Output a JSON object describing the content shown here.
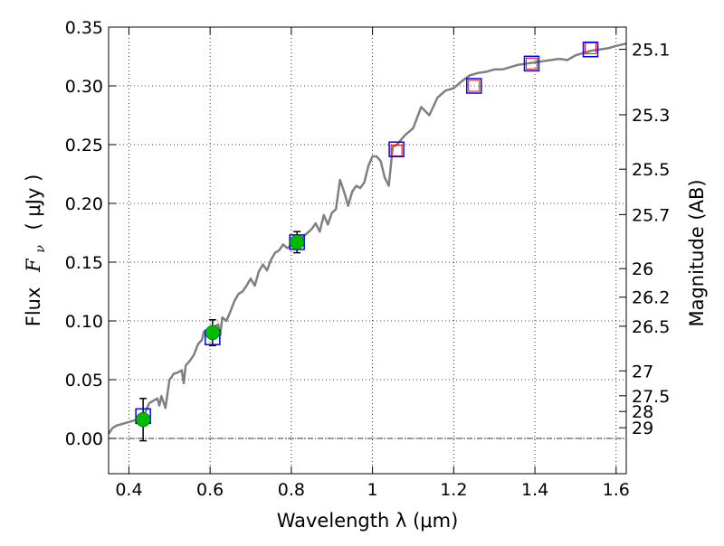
{
  "chart_data": {
    "type": "scatter",
    "xlabel": "Wavelength  λ (μm)",
    "ylabel_prefix": "Flux",
    "ylabel_symbol": "F",
    "ylabel_sub": "ν",
    "ylabel_unit": "( μJy )",
    "y2label": "Magnitude (AB)",
    "xlim": [
      0.35,
      1.625
    ],
    "ylim": [
      -0.03,
      0.35
    ],
    "grid": true,
    "x_ticks": [
      {
        "value": 0.4,
        "label": "0.4"
      },
      {
        "value": 0.6,
        "label": "0.6"
      },
      {
        "value": 0.8,
        "label": "0.8"
      },
      {
        "value": 1.0,
        "label": "1"
      },
      {
        "value": 1.2,
        "label": "1.2"
      },
      {
        "value": 1.4,
        "label": "1.4"
      },
      {
        "value": 1.6,
        "label": "1.6"
      }
    ],
    "y_ticks": [
      {
        "value": 0.0,
        "label": "0.00"
      },
      {
        "value": 0.05,
        "label": "0.05"
      },
      {
        "value": 0.1,
        "label": "0.10"
      },
      {
        "value": 0.15,
        "label": "0.15"
      },
      {
        "value": 0.2,
        "label": "0.20"
      },
      {
        "value": 0.25,
        "label": "0.25"
      },
      {
        "value": 0.3,
        "label": "0.30"
      },
      {
        "value": 0.35,
        "label": "0.35"
      }
    ],
    "mag_ticks": [
      {
        "flux": 0.3311,
        "label": "25.1"
      },
      {
        "flux": 0.2754,
        "label": "25.3"
      },
      {
        "flux": 0.2291,
        "label": "25.5"
      },
      {
        "flux": 0.1905,
        "label": "25.7"
      },
      {
        "flux": 0.1445,
        "label": "26"
      },
      {
        "flux": 0.1202,
        "label": "26.2"
      },
      {
        "flux": 0.0955,
        "label": "26.5"
      },
      {
        "flux": 0.0575,
        "label": "27"
      },
      {
        "flux": 0.0363,
        "label": "27.5"
      },
      {
        "flux": 0.0229,
        "label": "28"
      },
      {
        "flux": 0.0091,
        "label": "29"
      }
    ],
    "mag_ref_flux": 0.0,
    "model_sed": {
      "name": "model spectrum",
      "color": "#808080",
      "x": [
        0.35,
        0.36,
        0.37,
        0.38,
        0.4,
        0.42,
        0.43,
        0.44,
        0.45,
        0.46,
        0.47,
        0.475,
        0.48,
        0.49,
        0.5,
        0.505,
        0.51,
        0.52,
        0.53,
        0.535,
        0.54,
        0.55,
        0.56,
        0.57,
        0.58,
        0.585,
        0.59,
        0.6,
        0.61,
        0.62,
        0.625,
        0.63,
        0.64,
        0.65,
        0.66,
        0.67,
        0.68,
        0.69,
        0.7,
        0.71,
        0.72,
        0.73,
        0.74,
        0.75,
        0.76,
        0.77,
        0.78,
        0.79,
        0.8,
        0.81,
        0.82,
        0.83,
        0.84,
        0.85,
        0.86,
        0.87,
        0.88,
        0.89,
        0.9,
        0.91,
        0.92,
        0.93,
        0.94,
        0.95,
        0.96,
        0.97,
        0.98,
        0.99,
        1.0,
        1.01,
        1.02,
        1.03,
        1.04,
        1.05,
        1.06,
        1.07,
        1.08,
        1.1,
        1.12,
        1.14,
        1.16,
        1.18,
        1.2,
        1.22,
        1.24,
        1.26,
        1.28,
        1.3,
        1.32,
        1.34,
        1.36,
        1.38,
        1.4,
        1.42,
        1.44,
        1.46,
        1.48,
        1.5,
        1.52,
        1.54,
        1.56,
        1.58,
        1.6,
        1.625
      ],
      "y": [
        0.004,
        0.009,
        0.011,
        0.012,
        0.014,
        0.016,
        0.017,
        0.022,
        0.03,
        0.032,
        0.034,
        0.028,
        0.036,
        0.026,
        0.05,
        0.052,
        0.055,
        0.056,
        0.058,
        0.047,
        0.062,
        0.066,
        0.071,
        0.08,
        0.084,
        0.091,
        0.089,
        0.092,
        0.095,
        0.097,
        0.088,
        0.103,
        0.1,
        0.108,
        0.117,
        0.123,
        0.125,
        0.13,
        0.136,
        0.13,
        0.142,
        0.148,
        0.143,
        0.152,
        0.158,
        0.16,
        0.165,
        0.162,
        0.164,
        0.168,
        0.17,
        0.172,
        0.175,
        0.178,
        0.183,
        0.176,
        0.19,
        0.182,
        0.192,
        0.195,
        0.22,
        0.21,
        0.198,
        0.21,
        0.215,
        0.213,
        0.218,
        0.232,
        0.24,
        0.24,
        0.236,
        0.222,
        0.215,
        0.248,
        0.25,
        0.254,
        0.258,
        0.264,
        0.282,
        0.275,
        0.29,
        0.296,
        0.298,
        0.304,
        0.309,
        0.311,
        0.312,
        0.314,
        0.314,
        0.316,
        0.318,
        0.319,
        0.32,
        0.321,
        0.322,
        0.323,
        0.322,
        0.326,
        0.328,
        0.33,
        0.331,
        0.332,
        0.334,
        0.336
      ]
    },
    "model_photometry": {
      "name": "model photometry",
      "color": "#0000ff",
      "x": [
        0.435,
        0.606,
        0.814,
        1.059,
        1.25,
        1.392,
        1.537
      ],
      "y": [
        0.019,
        0.086,
        0.167,
        0.246,
        0.3,
        0.319,
        0.331
      ]
    },
    "upper_limits": {
      "name": "upper limit measurements",
      "color": "#ff0000",
      "x": [
        1.059,
        1.25,
        1.392,
        1.537
      ],
      "y": [
        0.245,
        0.3,
        0.319,
        0.332
      ]
    },
    "observed": {
      "name": "observed flux",
      "color": "#00bb00",
      "x": [
        0.435,
        0.606,
        0.814
      ],
      "y": [
        0.016,
        0.09,
        0.167
      ],
      "yerr": [
        0.018,
        0.011,
        0.009
      ]
    }
  }
}
